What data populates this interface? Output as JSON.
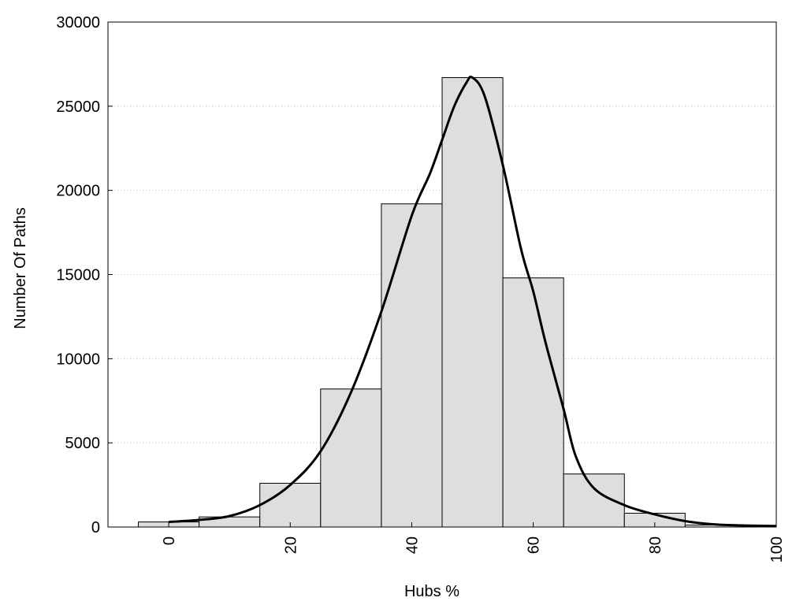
{
  "chart_data": {
    "type": "bar",
    "title": "",
    "xlabel": "Hubs %",
    "ylabel": "Number Of Paths",
    "xlim": [
      -10,
      100
    ],
    "ylim": [
      0,
      30000
    ],
    "grid": "horizontal dotted",
    "x_ticks": [
      "0",
      "20",
      "40",
      "60",
      "80",
      "100"
    ],
    "y_ticks": [
      "0",
      "5000",
      "10000",
      "15000",
      "20000",
      "25000",
      "30000"
    ],
    "bin_width": 10,
    "bins": [
      {
        "center": 0,
        "value": 300
      },
      {
        "center": 10,
        "value": 600
      },
      {
        "center": 20,
        "value": 2600
      },
      {
        "center": 30,
        "value": 8200
      },
      {
        "center": 40,
        "value": 19200
      },
      {
        "center": 50,
        "value": 26700
      },
      {
        "center": 60,
        "value": 14800
      },
      {
        "center": 70,
        "value": 3150
      },
      {
        "center": 80,
        "value": 820
      },
      {
        "center": 90,
        "value": 120
      }
    ],
    "density_curve": [
      [
        0,
        300
      ],
      [
        5,
        420
      ],
      [
        10,
        650
      ],
      [
        15,
        1300
      ],
      [
        20,
        2500
      ],
      [
        25,
        4500
      ],
      [
        30,
        8000
      ],
      [
        35,
        12800
      ],
      [
        40,
        18500
      ],
      [
        43,
        21000
      ],
      [
        45,
        23000
      ],
      [
        47,
        25000
      ],
      [
        49,
        26400
      ],
      [
        50,
        26700
      ],
      [
        52,
        25600
      ],
      [
        55,
        21500
      ],
      [
        58,
        16500
      ],
      [
        60,
        14000
      ],
      [
        62,
        11000
      ],
      [
        65,
        7000
      ],
      [
        67,
        4200
      ],
      [
        70,
        2300
      ],
      [
        75,
        1300
      ],
      [
        80,
        750
      ],
      [
        85,
        350
      ],
      [
        90,
        150
      ],
      [
        95,
        90
      ],
      [
        100,
        60
      ]
    ]
  },
  "colors": {
    "bar_fill": "#dedede",
    "bar_stroke": "#000000",
    "curve": "#000000",
    "grid": "#bbbbbb"
  }
}
